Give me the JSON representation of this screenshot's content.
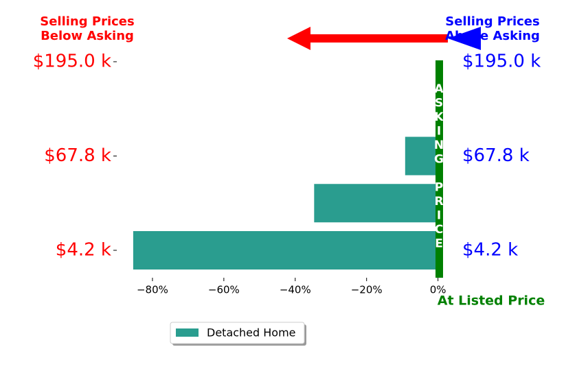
{
  "chart_data": {
    "type": "barh",
    "categories": [
      "$4.2 k",
      null,
      "$67.8 k",
      null,
      "$195.0 k"
    ],
    "series": [
      {
        "name": "Detached Home",
        "color": "#2a9d8f",
        "values": [
          -85.4,
          -34.7,
          -9.2,
          0,
          0
        ]
      }
    ],
    "xlim": [
      -90,
      2
    ],
    "xticks": [
      {
        "value": -80,
        "label": "−80%"
      },
      {
        "value": -60,
        "label": "−60%"
      },
      {
        "value": -40,
        "label": "−40%"
      },
      {
        "value": -20,
        "label": "−20%"
      },
      {
        "value": 0,
        "label": "0%"
      }
    ],
    "annotations": {
      "below": "Selling Prices\nBelow Asking",
      "above": "Selling Prices\nAbove Asking",
      "listed": "At Listed Price",
      "asking": "ASKING PRICE"
    },
    "legend": "lower left"
  }
}
